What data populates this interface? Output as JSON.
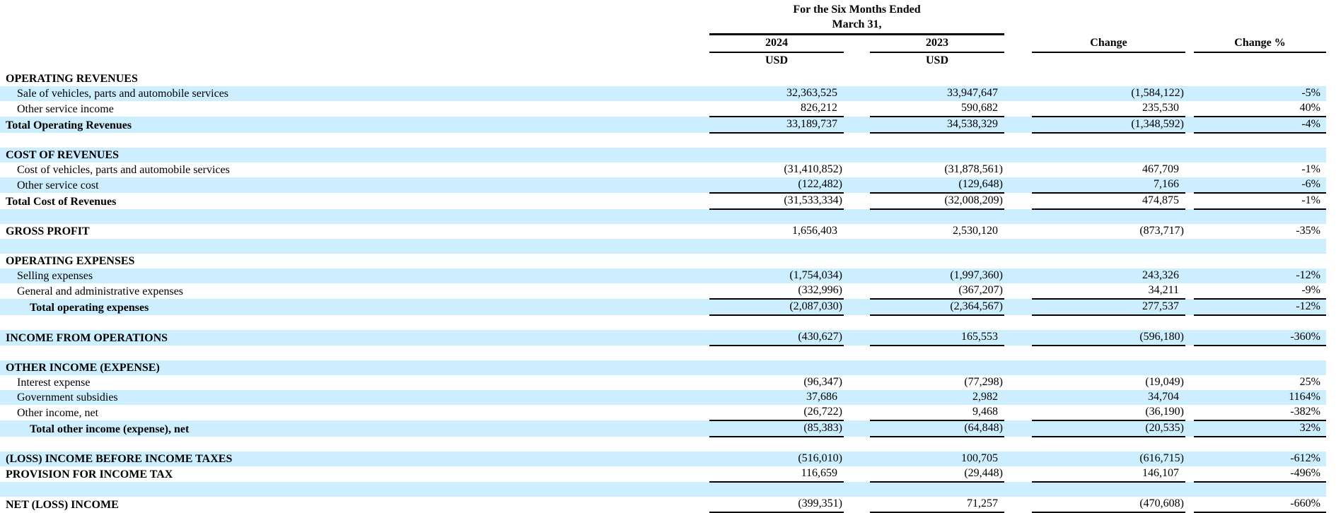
{
  "colors": {
    "stripe_blue": "#cceeff",
    "rule_black": "#000000"
  },
  "table": {
    "header": {
      "period_line1": "For the Six Months Ended",
      "period_line2": "March 31,"
    },
    "columns": {
      "y2024": "2024",
      "y2023": "2023",
      "change": "Change",
      "change_pct": "Change %",
      "currency": "USD"
    },
    "rows": [
      {
        "kind": "section",
        "label": "OPERATING REVENUES",
        "bg": "white",
        "bold": true,
        "indent": 0
      },
      {
        "kind": "item",
        "label": "Sale of vehicles, parts and automobile services",
        "bg": "blue",
        "indent": 1,
        "v2024": "32,363,525",
        "v2023": "33,947,647",
        "change": "(1,584,122)",
        "pct": "-5%"
      },
      {
        "kind": "item",
        "label": "Other service income",
        "bg": "white",
        "indent": 1,
        "v2024": "826,212",
        "v2023": "590,682",
        "change": "235,530",
        "pct": "40%",
        "rule": true
      },
      {
        "kind": "total",
        "label": "Total Operating Revenues",
        "bg": "blue",
        "bold": true,
        "indent": 0,
        "v2024": "33,189,737",
        "v2023": "34,538,329",
        "change": "(1,348,592)",
        "pct": "-4%",
        "rule": true
      },
      {
        "kind": "spacer",
        "bg": "white"
      },
      {
        "kind": "section",
        "label": "COST OF REVENUES",
        "bg": "blue",
        "bold": true,
        "indent": 0
      },
      {
        "kind": "item",
        "label": "Cost of vehicles, parts and automobile services",
        "bg": "white",
        "indent": 1,
        "v2024": "(31,410,852)",
        "v2023": "(31,878,561)",
        "change": "467,709",
        "pct": "-1%"
      },
      {
        "kind": "item",
        "label": "Other service cost",
        "bg": "blue",
        "indent": 1,
        "v2024": "(122,482)",
        "v2023": "(129,648)",
        "change": "7,166",
        "pct": "-6%",
        "rule": true
      },
      {
        "kind": "total",
        "label": "Total Cost of Revenues",
        "bg": "white",
        "bold": true,
        "indent": 0,
        "v2024": "(31,533,334)",
        "v2023": "(32,008,209)",
        "change": "474,875",
        "pct": "-1%",
        "rule": true
      },
      {
        "kind": "spacer",
        "bg": "blue"
      },
      {
        "kind": "section-total",
        "label": "GROSS PROFIT",
        "bg": "white",
        "bold": true,
        "indent": 0,
        "v2024": "1,656,403",
        "v2023": "2,530,120",
        "change": "(873,717)",
        "pct": "-35%"
      },
      {
        "kind": "spacer",
        "bg": "blue"
      },
      {
        "kind": "section",
        "label": "OPERATING EXPENSES",
        "bg": "white",
        "bold": true,
        "indent": 0
      },
      {
        "kind": "item",
        "label": "Selling expenses",
        "bg": "blue",
        "indent": 1,
        "v2024": "(1,754,034)",
        "v2023": "(1,997,360)",
        "change": "243,326",
        "pct": "-12%"
      },
      {
        "kind": "item",
        "label": "General and administrative expenses",
        "bg": "white",
        "indent": 1,
        "v2024": "(332,996)",
        "v2023": "(367,207)",
        "change": "34,211",
        "pct": "-9%",
        "rule": true
      },
      {
        "kind": "total",
        "label": "Total operating expenses",
        "bg": "blue",
        "bold": true,
        "indent": 2,
        "v2024": "(2,087,030)",
        "v2023": "(2,364,567)",
        "change": "277,537",
        "pct": "-12%",
        "rule": true
      },
      {
        "kind": "spacer",
        "bg": "white"
      },
      {
        "kind": "section-total",
        "label": "INCOME FROM OPERATIONS",
        "bg": "blue",
        "bold": true,
        "indent": 0,
        "v2024": "(430,627)",
        "v2023": "165,553",
        "change": "(596,180)",
        "pct": "-360%",
        "rule": true
      },
      {
        "kind": "spacer",
        "bg": "white"
      },
      {
        "kind": "section",
        "label": "OTHER INCOME (EXPENSE)",
        "bg": "blue",
        "bold": true,
        "indent": 0
      },
      {
        "kind": "item",
        "label": "Interest expense",
        "bg": "white",
        "indent": 1,
        "v2024": "(96,347)",
        "v2023": "(77,298)",
        "change": "(19,049)",
        "pct": "25%"
      },
      {
        "kind": "item",
        "label": "Government subsidies",
        "bg": "blue",
        "indent": 1,
        "v2024": "37,686",
        "v2023": "2,982",
        "change": "34,704",
        "pct": "1164%"
      },
      {
        "kind": "item",
        "label": "Other income, net",
        "bg": "white",
        "indent": 1,
        "v2024": "(26,722)",
        "v2023": "9,468",
        "change": "(36,190)",
        "pct": "-382%",
        "rule": true
      },
      {
        "kind": "total",
        "label": "Total other income (expense), net",
        "bg": "blue",
        "bold": true,
        "indent": 2,
        "v2024": "(85,383)",
        "v2023": "(64,848)",
        "change": "(20,535)",
        "pct": "32%",
        "rule": true
      },
      {
        "kind": "spacer",
        "bg": "white"
      },
      {
        "kind": "section-total",
        "label": "(LOSS) INCOME BEFORE INCOME TAXES",
        "bg": "blue",
        "bold": true,
        "indent": 0,
        "v2024": "(516,010)",
        "v2023": "100,705",
        "change": "(616,715)",
        "pct": "-612%"
      },
      {
        "kind": "section-total",
        "label": "PROVISION FOR INCOME TAX",
        "bg": "white",
        "bold": true,
        "indent": 0,
        "v2024": "116,659",
        "v2023": "(29,448)",
        "change": "146,107",
        "pct": "-496%",
        "rule": true
      },
      {
        "kind": "spacer",
        "bg": "blue"
      },
      {
        "kind": "grand-total",
        "label": "NET (LOSS) INCOME",
        "bg": "white",
        "bold": true,
        "indent": 0,
        "v2024": "(399,351)",
        "v2023": "71,257",
        "change": "(470,608)",
        "pct": "-660%",
        "rule": true
      }
    ]
  }
}
